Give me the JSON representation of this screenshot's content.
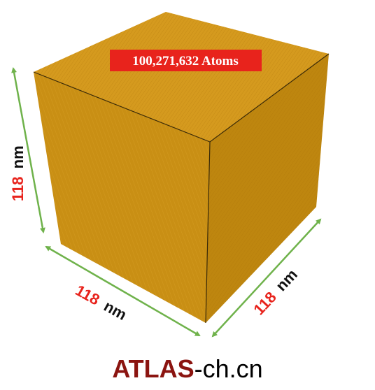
{
  "atom_count_label": "100,271,632 Atoms",
  "dimensions": {
    "height": {
      "value": "118",
      "unit": "nm"
    },
    "width": {
      "value": "118",
      "unit": "nm"
    },
    "depth": {
      "value": "118",
      "unit": "nm"
    }
  },
  "footer": {
    "brand": "ATLAS",
    "suffix": "-ch.cn"
  },
  "colors": {
    "cube_top": "#D59A1E",
    "cube_front": "#C98F14",
    "cube_side": "#BE860F",
    "badge_bg": "#E8231C",
    "badge_text": "#FFFFFF",
    "arrow": "#6FB24B",
    "dim_number": "#E8231C",
    "dim_unit": "#111111",
    "brand": "#8B1410",
    "suffix": "#000000"
  }
}
